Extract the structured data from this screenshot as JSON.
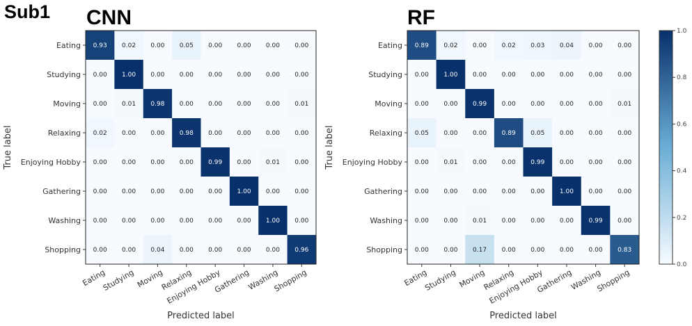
{
  "figure_label": "Sub1",
  "chart_data": [
    {
      "type": "heatmap",
      "title": "CNN",
      "xlabel": "Predicted label",
      "ylabel": "True label",
      "x_categories": [
        "Eating",
        "Studying",
        "Moving",
        "Relaxing",
        "Enjoying Hobby",
        "Gathering",
        "Washing",
        "Shopping"
      ],
      "y_categories": [
        "Eating",
        "Studying",
        "Moving",
        "Relaxing",
        "Enjoying Hobby",
        "Gathering",
        "Washing",
        "Shopping"
      ],
      "values": [
        [
          0.93,
          0.02,
          0.0,
          0.05,
          0.0,
          0.0,
          0.0,
          0.0
        ],
        [
          0.0,
          1.0,
          0.0,
          0.0,
          0.0,
          0.0,
          0.0,
          0.0
        ],
        [
          0.0,
          0.01,
          0.98,
          0.0,
          0.0,
          0.0,
          0.0,
          0.01
        ],
        [
          0.02,
          0.0,
          0.0,
          0.98,
          0.0,
          0.0,
          0.0,
          0.0
        ],
        [
          0.0,
          0.0,
          0.0,
          0.0,
          0.99,
          0.0,
          0.01,
          0.0
        ],
        [
          0.0,
          0.0,
          0.0,
          0.0,
          0.0,
          1.0,
          0.0,
          0.0
        ],
        [
          0.0,
          0.0,
          0.0,
          0.0,
          0.0,
          0.0,
          1.0,
          0.0
        ],
        [
          0.0,
          0.0,
          0.04,
          0.0,
          0.0,
          0.0,
          0.0,
          0.96
        ]
      ],
      "value_range": [
        0,
        1
      ],
      "colormap": "Blues"
    },
    {
      "type": "heatmap",
      "title": "RF",
      "xlabel": "Predicted label",
      "ylabel": "True label",
      "x_categories": [
        "Eating",
        "Studying",
        "Moving",
        "Relaxing",
        "Enjoying Hobby",
        "Gathering",
        "Washing",
        "Shopping"
      ],
      "y_categories": [
        "Eating",
        "Studying",
        "Moving",
        "Relaxing",
        "Enjoying Hobby",
        "Gathering",
        "Washing",
        "Shopping"
      ],
      "values": [
        [
          0.89,
          0.02,
          0.0,
          0.02,
          0.03,
          0.04,
          0.0,
          0.0
        ],
        [
          0.0,
          1.0,
          0.0,
          0.0,
          0.0,
          0.0,
          0.0,
          0.0
        ],
        [
          0.0,
          0.0,
          0.99,
          0.0,
          0.0,
          0.0,
          0.0,
          0.01
        ],
        [
          0.05,
          0.0,
          0.0,
          0.89,
          0.05,
          0.0,
          0.0,
          0.0
        ],
        [
          0.0,
          0.01,
          0.0,
          0.0,
          0.99,
          0.0,
          0.0,
          0.0
        ],
        [
          0.0,
          0.0,
          0.0,
          0.0,
          0.0,
          1.0,
          0.0,
          0.0
        ],
        [
          0.0,
          0.0,
          0.01,
          0.0,
          0.0,
          0.0,
          0.99,
          0.0
        ],
        [
          0.0,
          0.0,
          0.17,
          0.0,
          0.0,
          0.0,
          0.0,
          0.83
        ]
      ],
      "value_range": [
        0,
        1
      ],
      "colormap": "Blues"
    }
  ],
  "colorbar": {
    "ticks": [
      "0.0",
      "0.2",
      "0.4",
      "0.6",
      "0.8",
      "1.0"
    ],
    "tick_values": [
      0.0,
      0.2,
      0.4,
      0.6,
      0.8,
      1.0
    ],
    "colors": {
      "low": "#f7fbff",
      "mid": "#6baed6",
      "high": "#08306b",
      "dark_text": "#222222",
      "light_text": "#ffffff"
    }
  }
}
